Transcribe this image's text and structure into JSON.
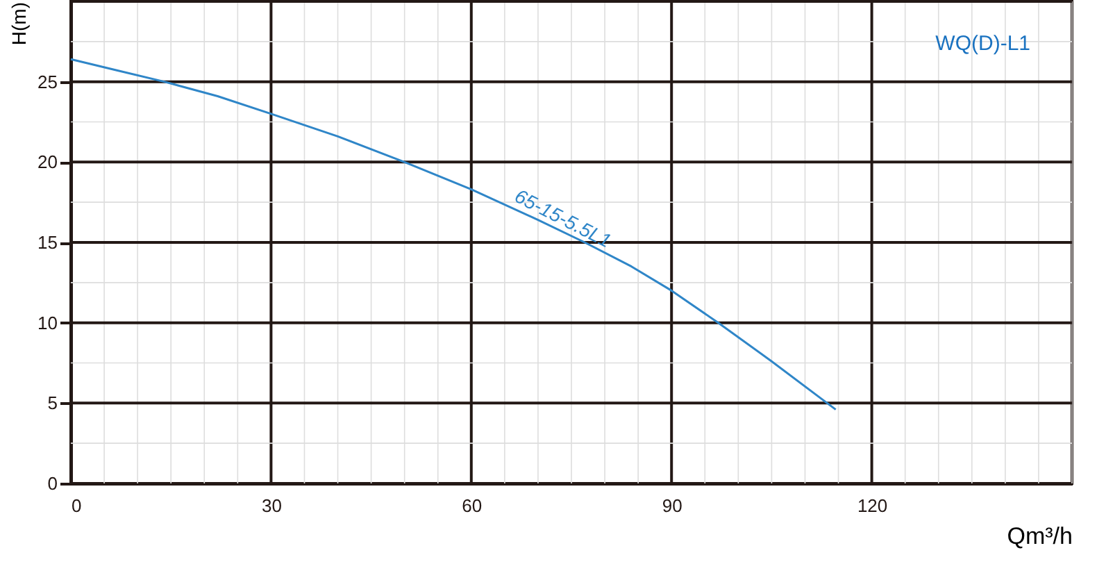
{
  "chart_data": {
    "type": "line",
    "title": "WQ(D)-L1",
    "xlabel": "Qm³/h",
    "ylabel": "H(m)",
    "x": [
      0,
      7,
      14,
      22,
      30,
      40,
      50,
      60,
      70,
      77,
      84,
      90,
      97,
      105,
      114.6
    ],
    "series": [
      {
        "name": "65-15-5.5L1",
        "color": "#2f86c8",
        "values": [
          26.4,
          25.7,
          25,
          24.1,
          23,
          21.6,
          20,
          18.3,
          16.4,
          15,
          13.5,
          12,
          10,
          7.6,
          4.6
        ]
      }
    ],
    "xlim": [
      0,
      150
    ],
    "xticks": [
      0,
      30,
      60,
      90,
      120
    ],
    "ylim": [
      0,
      30
    ],
    "yticks": [
      0,
      5,
      10,
      15,
      20,
      25
    ],
    "grid": true,
    "legend": false,
    "marker": "none",
    "line_style": "solid"
  }
}
